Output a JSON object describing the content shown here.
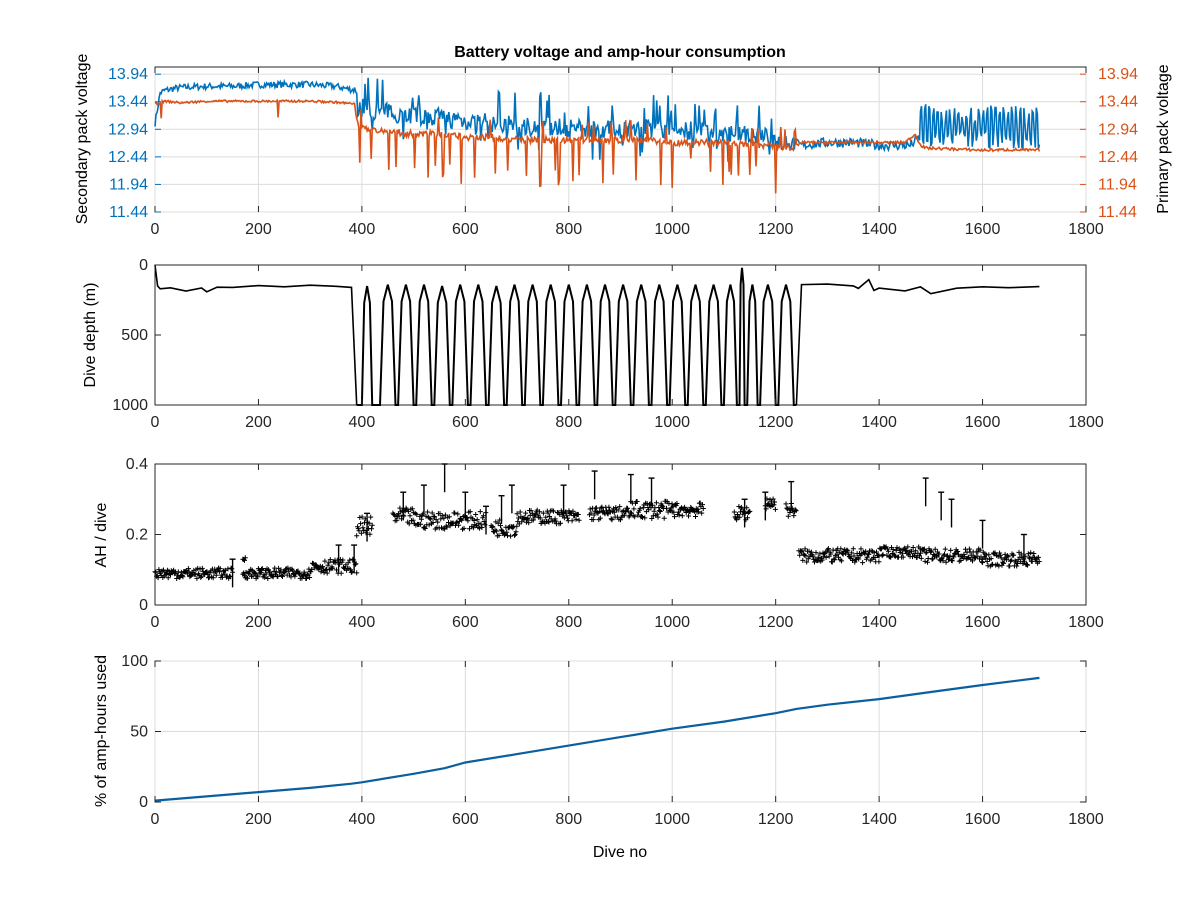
{
  "colors": {
    "secondary": "#0072bd",
    "primary": "#d95319",
    "black": "#000000",
    "grid": "#dcdcdc",
    "axis": "#262626",
    "usage": "#0b5f9e"
  },
  "chart_data": [
    {
      "id": "voltage",
      "type": "line",
      "title": "Battery voltage and amp-hour consumption",
      "xlabel": "",
      "ylabel": "Secondary pack voltage",
      "ylabel_right": "Primary pack voltage",
      "xlim": [
        0,
        1800
      ],
      "ylim": [
        11.44,
        14.07
      ],
      "xticks": [
        0,
        200,
        400,
        600,
        800,
        1000,
        1200,
        1400,
        1600,
        1800
      ],
      "yticks": [
        11.44,
        11.94,
        12.44,
        12.94,
        13.44,
        13.94
      ],
      "ytick_labels": [
        "11.44",
        "11.94",
        "12.44",
        "12.94",
        "13.44",
        "13.94"
      ],
      "grid": true,
      "series": [
        {
          "color_key": "secondary",
          "axis": "left",
          "x": [
            0,
            10,
            20,
            50,
            100,
            150,
            200,
            250,
            300,
            350,
            385,
            395,
            420,
            450,
            500,
            550,
            600,
            650,
            700,
            750,
            800,
            850,
            900,
            950,
            1000,
            1050,
            1100,
            1150,
            1200,
            1230,
            1250,
            1300,
            1350,
            1400,
            1440,
            1460,
            1480,
            1500,
            1550,
            1600,
            1650,
            1700,
            1710
          ],
          "y": [
            13.05,
            13.6,
            13.65,
            13.7,
            13.72,
            13.72,
            13.75,
            13.75,
            13.75,
            13.72,
            13.65,
            13.35,
            13.3,
            13.25,
            13.2,
            13.15,
            13.1,
            13.05,
            13.0,
            13.0,
            12.95,
            12.95,
            12.95,
            12.95,
            12.95,
            12.9,
            12.85,
            12.85,
            12.75,
            12.7,
            12.65,
            12.7,
            12.7,
            12.65,
            12.65,
            12.65,
            12.8,
            12.75,
            12.75,
            12.75,
            12.75,
            12.75,
            12.65
          ]
        },
        {
          "color_key": "primary",
          "axis": "right",
          "x": [
            0,
            20,
            50,
            100,
            150,
            200,
            250,
            300,
            350,
            385,
            395,
            420,
            450,
            500,
            550,
            600,
            650,
            700,
            750,
            800,
            850,
            900,
            950,
            1000,
            1050,
            1100,
            1150,
            1200,
            1230,
            1250,
            1300,
            1350,
            1400,
            1450,
            1470,
            1480,
            1490,
            1550,
            1600,
            1650,
            1700,
            1710
          ],
          "y": [
            13.4,
            13.45,
            13.42,
            13.45,
            13.45,
            13.45,
            13.45,
            13.45,
            13.43,
            13.4,
            12.95,
            12.95,
            12.9,
            12.85,
            12.85,
            12.8,
            12.8,
            12.75,
            12.75,
            12.75,
            12.75,
            12.75,
            12.75,
            12.7,
            12.7,
            12.7,
            12.65,
            12.65,
            12.6,
            12.7,
            12.7,
            12.7,
            12.7,
            12.7,
            12.85,
            12.65,
            12.6,
            12.58,
            12.56,
            12.57,
            12.56,
            12.56
          ]
        }
      ]
    },
    {
      "id": "depth",
      "type": "line",
      "title": "",
      "xlabel": "",
      "ylabel": "Dive depth (m)",
      "xlim": [
        0,
        1800
      ],
      "ylim": [
        0,
        1000
      ],
      "reversed_y": true,
      "xticks": [
        0,
        200,
        400,
        600,
        800,
        1000,
        1200,
        1400,
        1600,
        1800
      ],
      "yticks": [
        0,
        500,
        1000
      ],
      "ytick_labels": [
        "0",
        "500",
        "1000"
      ],
      "grid": false,
      "series": [
        {
          "color_key": "black",
          "x": [
            0,
            5,
            10,
            30,
            60,
            90,
            100,
            120,
            150,
            200,
            250,
            300,
            350,
            380,
            390,
            1240,
            1250,
            1300,
            1350,
            1360,
            1380,
            1390,
            1400,
            1450,
            1480,
            1500,
            1550,
            1600,
            1650,
            1710
          ],
          "y": [
            0,
            150,
            170,
            160,
            180,
            170,
            190,
            160,
            155,
            150,
            150,
            150,
            150,
            160,
            1000,
            1000,
            140,
            140,
            150,
            170,
            110,
            180,
            170,
            180,
            160,
            200,
            170,
            160,
            160,
            160
          ],
          "dives": [
            [
              400,
              420,
              150
            ],
            [
              435,
              465,
              140
            ],
            [
              470,
              500,
              140
            ],
            [
              505,
              535,
              140
            ],
            [
              540,
              570,
              150
            ],
            [
              575,
              605,
              140
            ],
            [
              610,
              640,
              140
            ],
            [
              645,
              675,
              150
            ],
            [
              680,
              710,
              140
            ],
            [
              715,
              745,
              140
            ],
            [
              750,
              780,
              140
            ],
            [
              785,
              815,
              140
            ],
            [
              820,
              850,
              140
            ],
            [
              855,
              885,
              140
            ],
            [
              890,
              920,
              140
            ],
            [
              925,
              955,
              140
            ],
            [
              960,
              990,
              140
            ],
            [
              995,
              1025,
              140
            ],
            [
              1030,
              1060,
              140
            ],
            [
              1065,
              1095,
              140
            ],
            [
              1100,
              1125,
              140
            ],
            [
              1130,
              1140,
              20
            ],
            [
              1145,
              1165,
              140
            ],
            [
              1170,
              1200,
              140
            ],
            [
              1205,
              1235,
              140
            ]
          ]
        }
      ]
    },
    {
      "id": "ah",
      "type": "scatter",
      "title": "",
      "xlabel": "",
      "ylabel": "AH / dive",
      "xlim": [
        0,
        1800
      ],
      "ylim": [
        0,
        0.4
      ],
      "xticks": [
        0,
        200,
        400,
        600,
        800,
        1000,
        1200,
        1400,
        1600,
        1800
      ],
      "yticks": [
        0,
        0.2,
        0.4
      ],
      "ytick_labels": [
        "0",
        "0.2",
        "0.4"
      ],
      "grid": false,
      "series": [
        {
          "color_key": "black",
          "segments": [
            {
              "x0": 0,
              "x1": 150,
              "y": 0.09,
              "spread": 0.015
            },
            {
              "x0": 170,
              "x1": 175,
              "y": 0.13,
              "spread": 0.005
            },
            {
              "x0": 170,
              "x1": 300,
              "y": 0.09,
              "spread": 0.015
            },
            {
              "x0": 300,
              "x1": 390,
              "y": 0.11,
              "spread": 0.02
            },
            {
              "x0": 390,
              "x1": 420,
              "y": 0.22,
              "spread": 0.03
            },
            {
              "x0": 460,
              "x1": 500,
              "y": 0.25,
              "spread": 0.025
            },
            {
              "x0": 500,
              "x1": 640,
              "y": 0.24,
              "spread": 0.025
            },
            {
              "x0": 650,
              "x1": 700,
              "y": 0.22,
              "spread": 0.025
            },
            {
              "x0": 700,
              "x1": 760,
              "y": 0.25,
              "spread": 0.02
            },
            {
              "x0": 760,
              "x1": 820,
              "y": 0.25,
              "spread": 0.02
            },
            {
              "x0": 840,
              "x1": 920,
              "y": 0.26,
              "spread": 0.02
            },
            {
              "x0": 920,
              "x1": 1000,
              "y": 0.27,
              "spread": 0.025
            },
            {
              "x0": 1000,
              "x1": 1060,
              "y": 0.27,
              "spread": 0.02
            },
            {
              "x0": 1120,
              "x1": 1150,
              "y": 0.26,
              "spread": 0.02
            },
            {
              "x0": 1180,
              "x1": 1200,
              "y": 0.29,
              "spread": 0.02
            },
            {
              "x0": 1220,
              "x1": 1240,
              "y": 0.27,
              "spread": 0.02
            },
            {
              "x0": 1245,
              "x1": 1400,
              "y": 0.14,
              "spread": 0.02
            },
            {
              "x0": 1400,
              "x1": 1480,
              "y": 0.15,
              "spread": 0.015
            },
            {
              "x0": 1480,
              "x1": 1600,
              "y": 0.14,
              "spread": 0.02
            },
            {
              "x0": 1600,
              "x1": 1710,
              "y": 0.13,
              "spread": 0.02
            }
          ],
          "spikes": [
            [
              150,
              0.13
            ],
            [
              355,
              0.17
            ],
            [
              385,
              0.17
            ],
            [
              410,
              0.26
            ],
            [
              480,
              0.32
            ],
            [
              520,
              0.34
            ],
            [
              560,
              0.4
            ],
            [
              600,
              0.32
            ],
            [
              640,
              0.28
            ],
            [
              670,
              0.31
            ],
            [
              690,
              0.34
            ],
            [
              790,
              0.34
            ],
            [
              850,
              0.38
            ],
            [
              920,
              0.37
            ],
            [
              960,
              0.36
            ],
            [
              1140,
              0.3
            ],
            [
              1180,
              0.32
            ],
            [
              1230,
              0.35
            ],
            [
              1490,
              0.36
            ],
            [
              1520,
              0.32
            ],
            [
              1540,
              0.3
            ],
            [
              1600,
              0.24
            ],
            [
              1680,
              0.2
            ]
          ]
        }
      ]
    },
    {
      "id": "usage",
      "type": "line",
      "title": "",
      "xlabel": "Dive no",
      "ylabel": "% of amp-hours used",
      "xlim": [
        0,
        1800
      ],
      "ylim": [
        0,
        100
      ],
      "xticks": [
        0,
        200,
        400,
        600,
        800,
        1000,
        1200,
        1400,
        1600,
        1800
      ],
      "yticks": [
        0,
        50,
        100
      ],
      "ytick_labels": [
        "0",
        "50",
        "100"
      ],
      "grid": true,
      "series": [
        {
          "color_key": "usage",
          "x": [
            0,
            100,
            200,
            300,
            380,
            400,
            500,
            560,
            600,
            700,
            800,
            900,
            1000,
            1100,
            1200,
            1240,
            1300,
            1400,
            1500,
            1600,
            1710
          ],
          "y": [
            1,
            4,
            7,
            10,
            13,
            14,
            20,
            24,
            28,
            34,
            40,
            46,
            52,
            57,
            63,
            66,
            69,
            73,
            78,
            83,
            88
          ]
        }
      ]
    }
  ]
}
